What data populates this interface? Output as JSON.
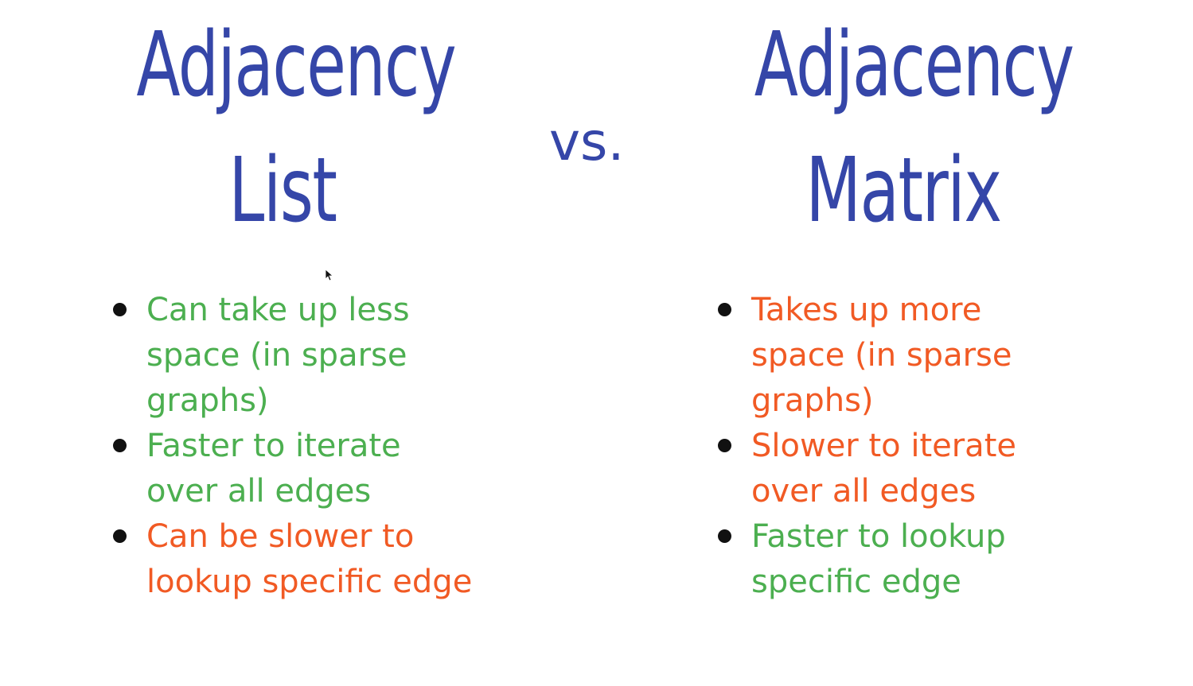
{
  "left": {
    "title_line1": "Adjacency",
    "title_line2": "List",
    "items": [
      {
        "text": "Can take up less space (in sparse graphs)",
        "tone": "good"
      },
      {
        "text": "Faster to iterate over all edges",
        "tone": "good"
      },
      {
        "text": "Can be slower to lookup specific edge",
        "tone": "bad"
      }
    ]
  },
  "separator": "vs.",
  "right": {
    "title_line1": "Adjacency",
    "title_line2": "Matrix",
    "items": [
      {
        "text": "Takes up more space (in sparse graphs)",
        "tone": "bad"
      },
      {
        "text": "Slower to iterate over all edges",
        "tone": "bad"
      },
      {
        "text": "Faster to lookup specific edge",
        "tone": "good"
      }
    ]
  },
  "colors": {
    "title": "#3546a8",
    "good": "#4caf50",
    "bad": "#f15a24",
    "bullet": "#111111"
  },
  "icons": {
    "cursor": "mouse-pointer-icon"
  }
}
